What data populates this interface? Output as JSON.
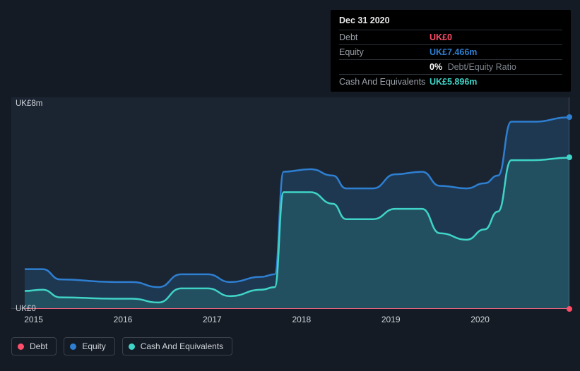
{
  "tooltip": {
    "date": "Dec 31 2020",
    "debt_label": "Debt",
    "debt_value": "UK£0",
    "equity_label": "Equity",
    "equity_value": "UK£7.466m",
    "ratio_value": "0%",
    "ratio_suffix": "Debt/Equity Ratio",
    "cash_label": "Cash And Equivalents",
    "cash_value": "UK£5.896m"
  },
  "chart": {
    "type": "area-line",
    "background": "#151b24",
    "plot_bg": "#1b2531",
    "axis_color": "#cfd4da",
    "x_years": [
      "2015",
      "2016",
      "2017",
      "2018",
      "2019",
      "2020"
    ],
    "x_year_values": [
      2015,
      2016,
      2017,
      2018,
      2019,
      2020
    ],
    "xlim": [
      2014.75,
      2021.0
    ],
    "ylim": [
      0,
      8.25
    ],
    "y_ticks": [
      {
        "v": 0,
        "label": "UK£0"
      },
      {
        "v": 8,
        "label": "UK£8m"
      }
    ],
    "series": {
      "debt": {
        "label": "Debt",
        "color": "#ff4d6a",
        "fill": "rgba(255,77,106,0.15)",
        "line_width": 2,
        "data": [
          [
            2014.9,
            0
          ],
          [
            2021.0,
            0
          ]
        ]
      },
      "equity": {
        "label": "Equity",
        "color": "#2e7fd1",
        "fill": "rgba(32,72,110,0.55)",
        "line_width": 2.5,
        "data": [
          [
            2014.9,
            1.55
          ],
          [
            2015.1,
            1.55
          ],
          [
            2015.3,
            1.15
          ],
          [
            2015.9,
            1.05
          ],
          [
            2016.1,
            1.05
          ],
          [
            2016.4,
            0.85
          ],
          [
            2016.65,
            1.35
          ],
          [
            2016.95,
            1.35
          ],
          [
            2017.2,
            1.05
          ],
          [
            2017.55,
            1.25
          ],
          [
            2017.7,
            1.35
          ],
          [
            2017.8,
            5.35
          ],
          [
            2018.1,
            5.45
          ],
          [
            2018.35,
            5.2
          ],
          [
            2018.5,
            4.7
          ],
          [
            2018.8,
            4.7
          ],
          [
            2019.05,
            5.25
          ],
          [
            2019.35,
            5.35
          ],
          [
            2019.55,
            4.8
          ],
          [
            2019.85,
            4.7
          ],
          [
            2020.05,
            4.9
          ],
          [
            2020.2,
            5.2
          ],
          [
            2020.35,
            7.3
          ],
          [
            2020.6,
            7.3
          ],
          [
            2021.0,
            7.47
          ]
        ]
      },
      "cash": {
        "label": "Cash And Equivalents",
        "color": "#3fd4c7",
        "fill": "rgba(46,125,122,0.35)",
        "line_width": 2.5,
        "data": [
          [
            2014.9,
            0.7
          ],
          [
            2015.1,
            0.75
          ],
          [
            2015.3,
            0.45
          ],
          [
            2015.9,
            0.4
          ],
          [
            2016.1,
            0.4
          ],
          [
            2016.4,
            0.25
          ],
          [
            2016.65,
            0.8
          ],
          [
            2016.95,
            0.8
          ],
          [
            2017.2,
            0.5
          ],
          [
            2017.55,
            0.75
          ],
          [
            2017.7,
            0.85
          ],
          [
            2017.8,
            4.55
          ],
          [
            2018.1,
            4.55
          ],
          [
            2018.35,
            4.1
          ],
          [
            2018.5,
            3.5
          ],
          [
            2018.8,
            3.5
          ],
          [
            2019.05,
            3.9
          ],
          [
            2019.35,
            3.9
          ],
          [
            2019.55,
            2.95
          ],
          [
            2019.85,
            2.7
          ],
          [
            2020.05,
            3.1
          ],
          [
            2020.2,
            3.8
          ],
          [
            2020.35,
            5.8
          ],
          [
            2020.6,
            5.8
          ],
          [
            2021.0,
            5.9
          ]
        ]
      }
    }
  },
  "legend": {
    "items": [
      {
        "key": "debt",
        "label": "Debt",
        "color": "#ff4d6a"
      },
      {
        "key": "equity",
        "label": "Equity",
        "color": "#2e7fd1"
      },
      {
        "key": "cash",
        "label": "Cash And Equivalents",
        "color": "#3fd4c7"
      }
    ]
  }
}
